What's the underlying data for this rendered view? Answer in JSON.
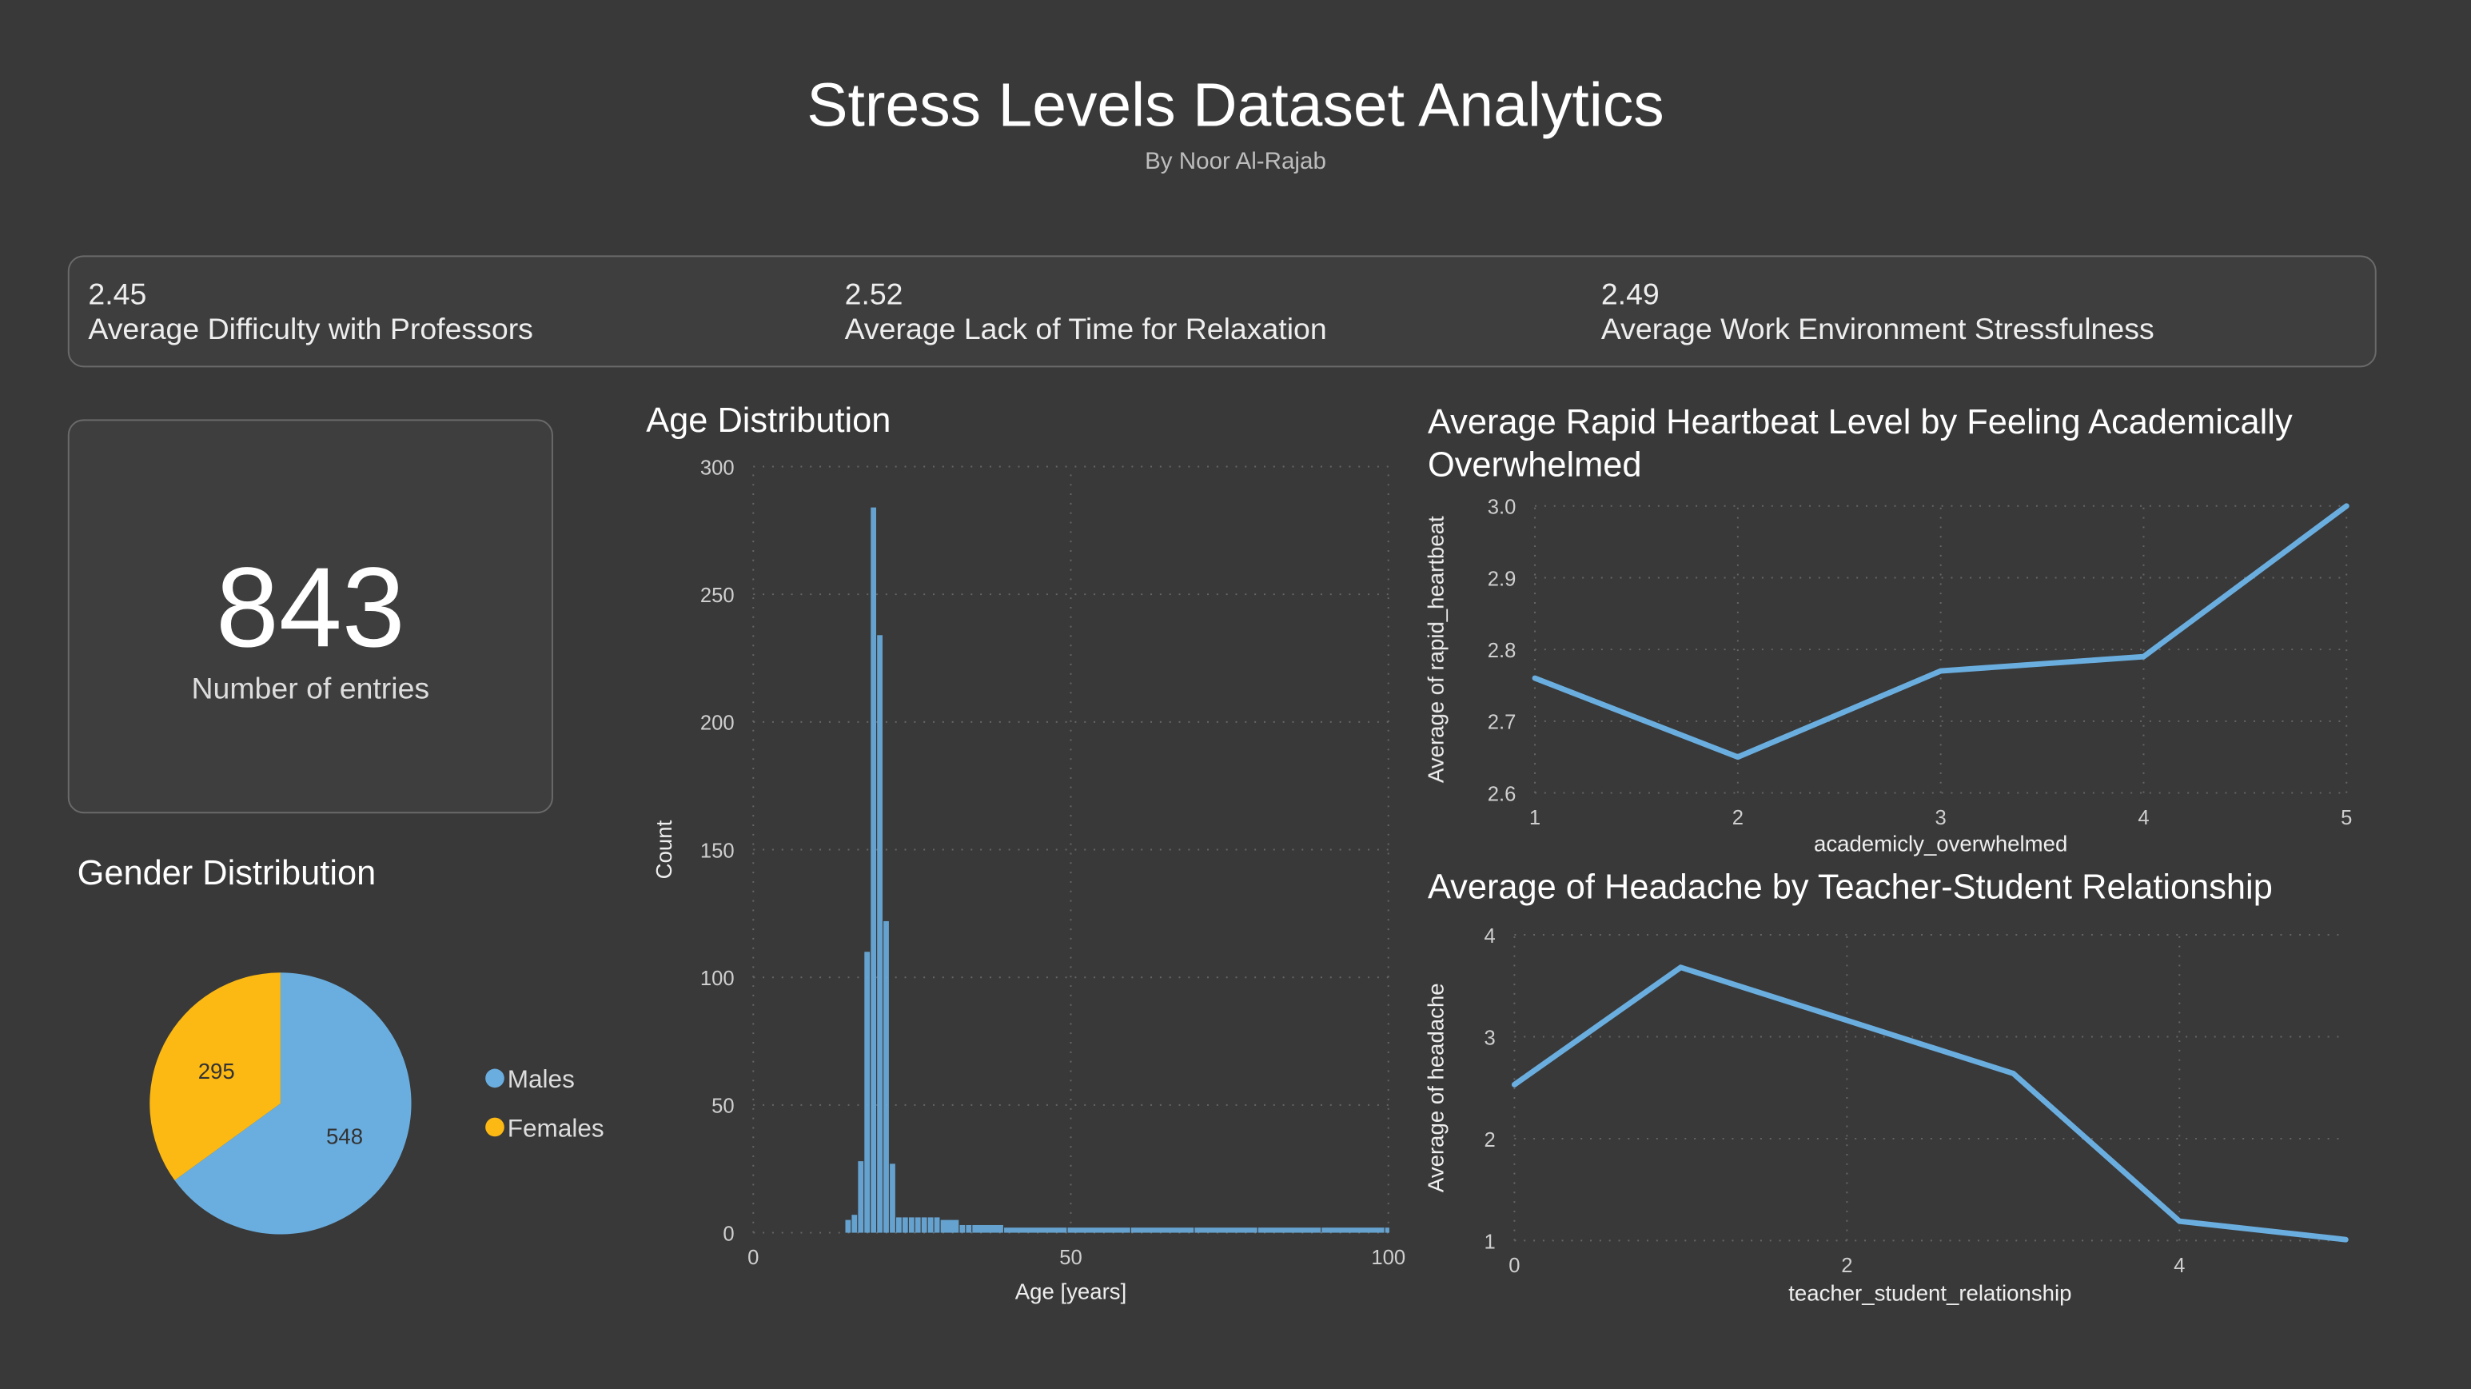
{
  "header": {
    "title": "Stress Levels Dataset Analytics",
    "subtitle": "By Noor Al-Rajab"
  },
  "kpis": [
    {
      "value": "2.45",
      "label": "Average Difficulty with Professors"
    },
    {
      "value": "2.52",
      "label": "Average Lack of Time for Relaxation"
    },
    {
      "value": "2.49",
      "label": "Average Work Environment Stressfulness"
    }
  ],
  "entries": {
    "value": "843",
    "label": "Number of entries"
  },
  "colors": {
    "background": "#393939",
    "blue": "#6AAEE0",
    "yellow": "#FDB913"
  },
  "chart_data": [
    {
      "type": "pie",
      "title": "Gender Distribution",
      "categories": [
        "Males",
        "Females"
      ],
      "values": [
        548,
        295
      ],
      "colors": [
        "#6AAEE0",
        "#FDB913"
      ],
      "legend": "right"
    },
    {
      "type": "bar",
      "title": "Age Distribution",
      "xlabel": "Age [years]",
      "ylabel": "Count",
      "xlim": [
        0,
        100
      ],
      "ylim": [
        0,
        300
      ],
      "xticks": [
        0,
        50,
        100
      ],
      "yticks": [
        0,
        50,
        100,
        150,
        200,
        250,
        300
      ],
      "grid": true,
      "x": [
        15,
        16,
        17,
        18,
        19,
        20,
        21,
        22,
        23,
        24,
        25,
        26,
        27,
        28,
        29,
        30,
        33,
        34,
        35,
        40,
        50,
        60,
        70,
        80,
        90,
        100
      ],
      "values": [
        5,
        7,
        28,
        110,
        284,
        234,
        122,
        27,
        6,
        6,
        6,
        6,
        6,
        6,
        6,
        5,
        3,
        3,
        3,
        2,
        2,
        2,
        2,
        2,
        2,
        2
      ]
    },
    {
      "type": "line",
      "title": "Average Rapid Heartbeat Level by Feeling Academically Overwhelmed",
      "xlabel": "academicly_overwhelmed",
      "ylabel": "Average of rapid_heartbeat",
      "xlim": [
        1,
        5
      ],
      "ylim": [
        2.6,
        3.0
      ],
      "xticks": [
        1,
        2,
        3,
        4,
        5
      ],
      "yticks": [
        "2.6",
        "2.7",
        "2.8",
        "2.9",
        "3.0"
      ],
      "grid": true,
      "x": [
        1,
        2,
        3,
        4,
        5
      ],
      "values": [
        2.76,
        2.65,
        2.77,
        2.79,
        3.0
      ]
    },
    {
      "type": "line",
      "title": "Average of Headache by Teacher-Student Relationship",
      "xlabel": "teacher_student_relationship",
      "ylabel": "Average of headache",
      "xlim": [
        0,
        5
      ],
      "ylim": [
        1,
        4
      ],
      "xticks": [
        0,
        2,
        4
      ],
      "yticks": [
        1,
        2,
        3,
        4
      ],
      "grid": true,
      "x": [
        0,
        1,
        3,
        4,
        5
      ],
      "values": [
        2.53,
        3.68,
        2.64,
        1.19,
        1.01
      ]
    }
  ]
}
